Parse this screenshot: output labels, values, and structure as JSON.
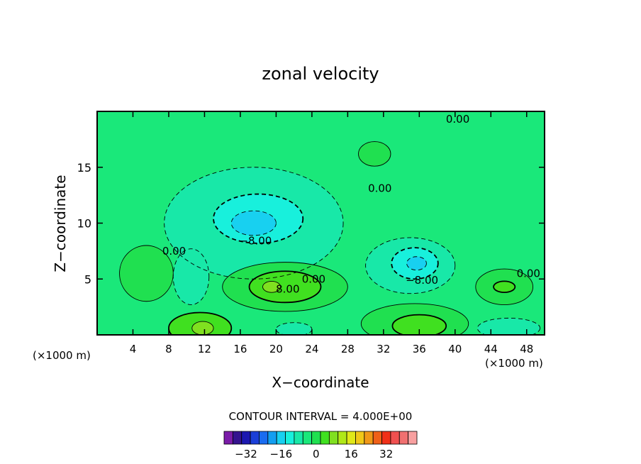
{
  "chart_data": {
    "type": "heatmap",
    "title": "zonal velocity",
    "xlabel": "X−coordinate",
    "ylabel": "Z−coordinate",
    "x_unit": "(×1000 m)",
    "y_unit": "(×1000 m)",
    "xlim": [
      0,
      50
    ],
    "ylim": [
      0,
      20
    ],
    "x_ticks": [
      4,
      8,
      12,
      16,
      20,
      24,
      28,
      32,
      36,
      40,
      44,
      48
    ],
    "y_ticks": [
      5,
      10,
      15
    ],
    "contour_interval_label": "CONTOUR INTERVAL = 4.000E+00",
    "contour_labels": [
      {
        "text": "0.00",
        "x": 40.3,
        "z": 19.3
      },
      {
        "text": "0.00",
        "x": 31.6,
        "z": 13.1
      },
      {
        "text": "−8.00",
        "x": 17.7,
        "z": 8.4
      },
      {
        "text": "0.00",
        "x": 8.6,
        "z": 7.5
      },
      {
        "text": "0.00",
        "x": 24.2,
        "z": 5.0
      },
      {
        "text": "8.00",
        "x": 21.3,
        "z": 4.1
      },
      {
        "text": "−8.00",
        "x": 36.3,
        "z": 4.9
      },
      {
        "text": "0.00",
        "x": 48.2,
        "z": 5.5
      }
    ],
    "colorbar": {
      "ticks": [
        "−32",
        "−16",
        "0",
        "16",
        "32"
      ],
      "colors": [
        "#7a1ca8",
        "#35138f",
        "#1c18b0",
        "#1a3fd8",
        "#1a6cf0",
        "#139ef0",
        "#18d0f0",
        "#18f0dc",
        "#18e8a8",
        "#1ae87a",
        "#20e050",
        "#40e020",
        "#80e020",
        "#b0e818",
        "#e0e818",
        "#f0c818",
        "#f09818",
        "#f06018",
        "#f03018",
        "#f05050",
        "#f07070",
        "#f8a0a0"
      ]
    },
    "fields": {
      "background_level": 0,
      "blobs": [
        {
          "x": 17.5,
          "z": 10,
          "rx": 10,
          "rz": 5,
          "v": -4
        },
        {
          "x": 18,
          "z": 10.4,
          "rx": 5,
          "rz": 2.2,
          "v": -8
        },
        {
          "x": 17.5,
          "z": 10,
          "rx": 2.5,
          "rz": 1.1,
          "v": -12
        },
        {
          "x": 35,
          "z": 6.2,
          "rx": 5,
          "rz": 2.5,
          "v": -4
        },
        {
          "x": 35.5,
          "z": 6.4,
          "rx": 2.6,
          "rz": 1.4,
          "v": -8
        },
        {
          "x": 35.7,
          "z": 6.4,
          "rx": 1.1,
          "rz": 0.6,
          "v": -12
        },
        {
          "x": 31,
          "z": 16.2,
          "rx": 1.8,
          "rz": 1.1,
          "v": 4
        },
        {
          "x": 21,
          "z": 4.3,
          "rx": 7,
          "rz": 2.2,
          "v": 4
        },
        {
          "x": 21,
          "z": 4.3,
          "rx": 4,
          "rz": 1.4,
          "v": 8
        },
        {
          "x": 19.5,
          "z": 4.3,
          "rx": 1,
          "rz": 0.5,
          "v": 12
        },
        {
          "x": 45.5,
          "z": 4.3,
          "rx": 3.2,
          "rz": 1.6,
          "v": 4
        },
        {
          "x": 45.5,
          "z": 4.3,
          "rx": 1.2,
          "rz": 0.5,
          "v": 8
        },
        {
          "x": 11.5,
          "z": 0.6,
          "rx": 3.5,
          "rz": 1.4,
          "v": 8
        },
        {
          "x": 11.8,
          "z": 0.6,
          "rx": 1.2,
          "rz": 0.6,
          "v": 12
        },
        {
          "x": 35.5,
          "z": 1.0,
          "rx": 6,
          "rz": 1.8,
          "v": 4
        },
        {
          "x": 36,
          "z": 0.8,
          "rx": 3,
          "rz": 1,
          "v": 8
        },
        {
          "x": 5.5,
          "z": 5.5,
          "rx": 3,
          "rz": 2.5,
          "v": 4
        },
        {
          "x": 46,
          "z": 0.6,
          "rx": 3.5,
          "rz": 0.9,
          "v": -4
        },
        {
          "x": 22,
          "z": 0.5,
          "rx": 2,
          "rz": 0.6,
          "v": -4
        },
        {
          "x": 10.5,
          "z": 5.2,
          "rx": 2,
          "rz": 2.5,
          "v": -4
        }
      ]
    }
  }
}
